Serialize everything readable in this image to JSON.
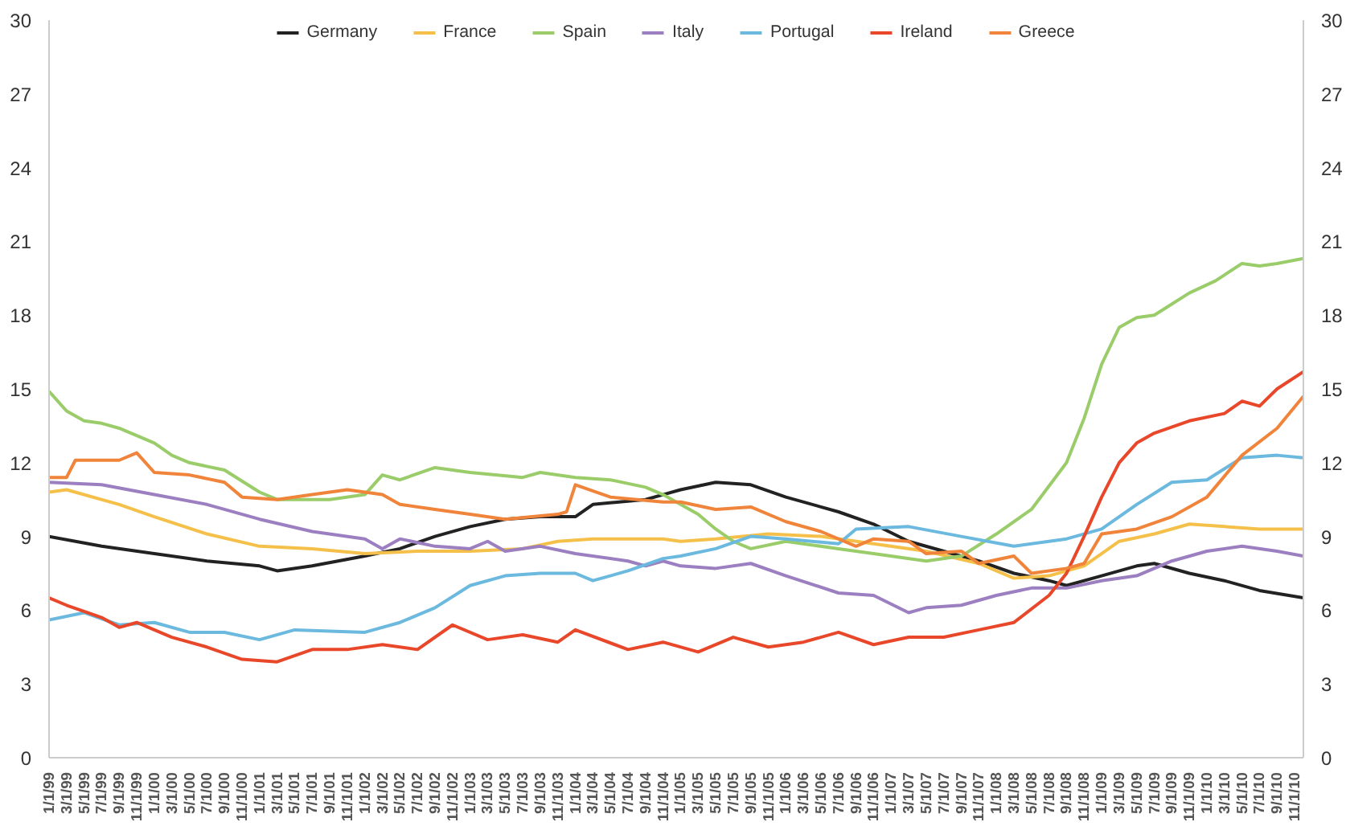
{
  "chart_data": {
    "type": "line",
    "ylim": [
      0,
      30
    ],
    "yticks": [
      0,
      3,
      6,
      9,
      12,
      15,
      18,
      21,
      24,
      27,
      30
    ],
    "y2lim": [
      0,
      30
    ],
    "y2ticks": [
      0,
      3,
      6,
      9,
      12,
      15,
      18,
      21,
      24,
      27,
      30
    ],
    "xlim": [
      "1999-01",
      "2010-12"
    ],
    "xticks": [
      {
        "value": "1999-01",
        "label": "1/1/99"
      },
      {
        "value": "1999-03",
        "label": "3/1/99"
      },
      {
        "value": "1999-05",
        "label": "5/1/99"
      },
      {
        "value": "1999-07",
        "label": "7/1/99"
      },
      {
        "value": "1999-09",
        "label": "9/1/99"
      },
      {
        "value": "1999-11",
        "label": "11/1/99"
      },
      {
        "value": "2000-01",
        "label": "1/1/00"
      },
      {
        "value": "2000-03",
        "label": "3/1/00"
      },
      {
        "value": "2000-05",
        "label": "5/1/00"
      },
      {
        "value": "2000-07",
        "label": "7/1/00"
      },
      {
        "value": "2000-09",
        "label": "9/1/00"
      },
      {
        "value": "2000-11",
        "label": "11/1/00"
      },
      {
        "value": "2001-01",
        "label": "1/1/01"
      },
      {
        "value": "2001-03",
        "label": "3/1/01"
      },
      {
        "value": "2001-05",
        "label": "5/1/01"
      },
      {
        "value": "2001-07",
        "label": "7/1/01"
      },
      {
        "value": "2001-09",
        "label": "9/1/01"
      },
      {
        "value": "2001-11",
        "label": "11/1/01"
      },
      {
        "value": "2002-01",
        "label": "1/1/02"
      },
      {
        "value": "2002-03",
        "label": "3/1/02"
      },
      {
        "value": "2002-05",
        "label": "5/1/02"
      },
      {
        "value": "2002-07",
        "label": "7/1/02"
      },
      {
        "value": "2002-09",
        "label": "9/1/02"
      },
      {
        "value": "2002-11",
        "label": "11/1/02"
      },
      {
        "value": "2003-01",
        "label": "1/1/03"
      },
      {
        "value": "2003-03",
        "label": "3/1/03"
      },
      {
        "value": "2003-05",
        "label": "5/1/03"
      },
      {
        "value": "2003-07",
        "label": "7/1/03"
      },
      {
        "value": "2003-09",
        "label": "9/1/03"
      },
      {
        "value": "2003-11",
        "label": "11/1/03"
      },
      {
        "value": "2004-01",
        "label": "1/1/04"
      },
      {
        "value": "2004-03",
        "label": "3/1/04"
      },
      {
        "value": "2004-05",
        "label": "5/1/04"
      },
      {
        "value": "2004-07",
        "label": "7/1/04"
      },
      {
        "value": "2004-09",
        "label": "9/1/04"
      },
      {
        "value": "2004-11",
        "label": "11/1/04"
      },
      {
        "value": "2005-01",
        "label": "1/1/05"
      },
      {
        "value": "2005-03",
        "label": "3/1/05"
      },
      {
        "value": "2005-05",
        "label": "5/1/05"
      },
      {
        "value": "2005-07",
        "label": "7/1/05"
      },
      {
        "value": "2005-09",
        "label": "9/1/05"
      },
      {
        "value": "2005-11",
        "label": "11/1/05"
      },
      {
        "value": "2006-01",
        "label": "1/1/06"
      },
      {
        "value": "2006-03",
        "label": "3/1/06"
      },
      {
        "value": "2006-05",
        "label": "5/1/06"
      },
      {
        "value": "2006-07",
        "label": "7/1/06"
      },
      {
        "value": "2006-09",
        "label": "9/1/06"
      },
      {
        "value": "2006-11",
        "label": "11/1/06"
      },
      {
        "value": "2007-01",
        "label": "1/1/07"
      },
      {
        "value": "2007-03",
        "label": "3/1/07"
      },
      {
        "value": "2007-05",
        "label": "5/1/07"
      },
      {
        "value": "2007-07",
        "label": "7/1/07"
      },
      {
        "value": "2007-09",
        "label": "9/1/07"
      },
      {
        "value": "2007-11",
        "label": "11/1/07"
      },
      {
        "value": "2008-01",
        "label": "1/1/08"
      },
      {
        "value": "2008-03",
        "label": "3/1/08"
      },
      {
        "value": "2008-05",
        "label": "5/1/08"
      },
      {
        "value": "2008-07",
        "label": "7/1/08"
      },
      {
        "value": "2008-09",
        "label": "9/1/08"
      },
      {
        "value": "2008-11",
        "label": "11/1/08"
      },
      {
        "value": "2009-01",
        "label": "1/1/09"
      },
      {
        "value": "2009-03",
        "label": "3/1/09"
      },
      {
        "value": "2009-05",
        "label": "5/1/09"
      },
      {
        "value": "2009-07",
        "label": "7/1/09"
      },
      {
        "value": "2009-09",
        "label": "9/1/09"
      },
      {
        "value": "2009-11",
        "label": "11/1/09"
      },
      {
        "value": "2010-01",
        "label": "1/1/10"
      },
      {
        "value": "2010-03",
        "label": "3/1/10"
      },
      {
        "value": "2010-05",
        "label": "5/1/10"
      },
      {
        "value": "2010-07",
        "label": "7/1/10"
      },
      {
        "value": "2010-09",
        "label": "9/1/10"
      },
      {
        "value": "2010-11",
        "label": "11/1/10"
      }
    ],
    "grid": false,
    "legend": "top",
    "marker": "none",
    "line_style": "solid",
    "series": [
      {
        "name": "Germany",
        "color": "#222222",
        "x": [
          "1999-01",
          "1999-07",
          "2000-01",
          "2000-07",
          "2001-01",
          "2001-03",
          "2001-07",
          "2002-01",
          "2002-05",
          "2002-09",
          "2003-01",
          "2003-05",
          "2003-09",
          "2004-01",
          "2004-03",
          "2004-09",
          "2004-11",
          "2005-01",
          "2005-05",
          "2005-09",
          "2006-01",
          "2006-07",
          "2006-11",
          "2007-03",
          "2007-07",
          "2007-11",
          "2008-03",
          "2008-07",
          "2008-09",
          "2009-01",
          "2009-05",
          "2009-07",
          "2009-11",
          "2010-03",
          "2010-07",
          "2010-12"
        ],
        "values": [
          9.0,
          8.6,
          8.3,
          8.0,
          7.8,
          7.6,
          7.8,
          8.2,
          8.5,
          9.0,
          9.4,
          9.7,
          9.8,
          9.8,
          10.3,
          10.5,
          10.7,
          10.9,
          11.2,
          11.1,
          10.6,
          10.0,
          9.5,
          8.8,
          8.4,
          8.0,
          7.5,
          7.2,
          7.0,
          7.4,
          7.8,
          7.9,
          7.5,
          7.2,
          6.8,
          6.5
        ]
      },
      {
        "name": "France",
        "color": "#f5c04a",
        "x": [
          "1999-01",
          "1999-03",
          "1999-09",
          "2000-01",
          "2000-07",
          "2001-01",
          "2001-07",
          "2002-01",
          "2002-07",
          "2003-01",
          "2003-07",
          "2003-11",
          "2004-03",
          "2004-11",
          "2005-01",
          "2005-05",
          "2005-11",
          "2006-05",
          "2006-11",
          "2007-05",
          "2007-11",
          "2008-03",
          "2008-07",
          "2008-11",
          "2009-03",
          "2009-07",
          "2009-11",
          "2010-03",
          "2010-07",
          "2010-12"
        ],
        "values": [
          10.8,
          10.9,
          10.3,
          9.8,
          9.1,
          8.6,
          8.5,
          8.3,
          8.4,
          8.4,
          8.5,
          8.8,
          8.9,
          8.9,
          8.8,
          8.9,
          9.1,
          9.0,
          8.7,
          8.4,
          7.9,
          7.3,
          7.4,
          7.8,
          8.8,
          9.1,
          9.5,
          9.4,
          9.3,
          9.3
        ]
      },
      {
        "name": "Spain",
        "color": "#9acd6a",
        "x": [
          "1999-01",
          "1999-03",
          "1999-05",
          "1999-07",
          "1999-09",
          "1999-11",
          "2000-01",
          "2000-03",
          "2000-05",
          "2000-09",
          "2001-01",
          "2001-03",
          "2001-09",
          "2002-01",
          "2002-03",
          "2002-05",
          "2002-09",
          "2003-01",
          "2003-07",
          "2003-09",
          "2004-01",
          "2004-05",
          "2004-09",
          "2004-11",
          "2005-01",
          "2005-03",
          "2005-05",
          "2005-07",
          "2005-09",
          "2006-01",
          "2006-07",
          "2006-11",
          "2007-05",
          "2007-09",
          "2008-01",
          "2008-05",
          "2008-09",
          "2008-11",
          "2009-01",
          "2009-03",
          "2009-05",
          "2009-07",
          "2009-11",
          "2010-02",
          "2010-05",
          "2010-07",
          "2010-09",
          "2010-12"
        ],
        "values": [
          14.9,
          14.1,
          13.7,
          13.6,
          13.4,
          13.1,
          12.8,
          12.3,
          12.0,
          11.7,
          10.8,
          10.5,
          10.5,
          10.7,
          11.5,
          11.3,
          11.8,
          11.6,
          11.4,
          11.6,
          11.4,
          11.3,
          11.0,
          10.7,
          10.3,
          9.9,
          9.3,
          8.8,
          8.5,
          8.8,
          8.5,
          8.3,
          8.0,
          8.2,
          9.1,
          10.1,
          12.0,
          13.8,
          16.0,
          17.5,
          17.9,
          18.0,
          18.9,
          19.4,
          20.1,
          20.0,
          20.1,
          20.3
        ]
      },
      {
        "name": "Italy",
        "color": "#9b7fc0",
        "x": [
          "1999-01",
          "1999-07",
          "2000-01",
          "2000-07",
          "2001-01",
          "2001-07",
          "2002-01",
          "2002-03",
          "2002-05",
          "2002-09",
          "2003-01",
          "2003-03",
          "2003-05",
          "2003-09",
          "2004-01",
          "2004-07",
          "2004-09",
          "2004-11",
          "2005-01",
          "2005-05",
          "2005-09",
          "2006-01",
          "2006-07",
          "2006-11",
          "2007-03",
          "2007-05",
          "2007-09",
          "2008-01",
          "2008-05",
          "2008-09",
          "2009-01",
          "2009-05",
          "2009-09",
          "2010-01",
          "2010-05",
          "2010-09",
          "2010-12"
        ],
        "values": [
          11.2,
          11.1,
          10.7,
          10.3,
          9.7,
          9.2,
          8.9,
          8.5,
          8.9,
          8.6,
          8.5,
          8.8,
          8.4,
          8.6,
          8.3,
          8.0,
          7.8,
          8.0,
          7.8,
          7.7,
          7.9,
          7.4,
          6.7,
          6.6,
          5.9,
          6.1,
          6.2,
          6.6,
          6.9,
          6.9,
          7.2,
          7.4,
          8.0,
          8.4,
          8.6,
          8.4,
          8.2
        ]
      },
      {
        "name": "Portugal",
        "color": "#6bb9de",
        "x": [
          "1999-01",
          "1999-05",
          "1999-09",
          "2000-01",
          "2000-05",
          "2000-09",
          "2001-01",
          "2001-05",
          "2002-01",
          "2002-05",
          "2002-09",
          "2003-01",
          "2003-05",
          "2003-09",
          "2004-01",
          "2004-03",
          "2004-07",
          "2004-11",
          "2005-01",
          "2005-05",
          "2005-09",
          "2006-01",
          "2006-07",
          "2006-09",
          "2007-03",
          "2007-09",
          "2008-03",
          "2008-09",
          "2009-01",
          "2009-05",
          "2009-09",
          "2010-01",
          "2010-05",
          "2010-09",
          "2010-12"
        ],
        "values": [
          5.6,
          5.9,
          5.4,
          5.5,
          5.1,
          5.1,
          4.8,
          5.2,
          5.1,
          5.5,
          6.1,
          7.0,
          7.4,
          7.5,
          7.5,
          7.2,
          7.6,
          8.1,
          8.2,
          8.5,
          9.0,
          8.9,
          8.7,
          9.3,
          9.4,
          9.0,
          8.6,
          8.9,
          9.3,
          10.3,
          11.2,
          11.3,
          12.2,
          12.3,
          12.2
        ]
      },
      {
        "name": "Ireland",
        "color": "#e8472a",
        "x": [
          "1999-01",
          "1999-03",
          "1999-07",
          "1999-09",
          "1999-11",
          "2000-03",
          "2000-07",
          "2000-11",
          "2001-03",
          "2001-07",
          "2001-11",
          "2002-03",
          "2002-07",
          "2002-11",
          "2003-03",
          "2003-07",
          "2003-11",
          "2004-01",
          "2004-07",
          "2004-11",
          "2005-03",
          "2005-07",
          "2005-11",
          "2006-03",
          "2006-07",
          "2006-11",
          "2007-03",
          "2007-07",
          "2007-11",
          "2008-03",
          "2008-07",
          "2008-09",
          "2008-11",
          "2009-01",
          "2009-03",
          "2009-05",
          "2009-07",
          "2009-11",
          "2010-03",
          "2010-05",
          "2010-07",
          "2010-09",
          "2010-12"
        ],
        "values": [
          6.5,
          6.2,
          5.7,
          5.3,
          5.5,
          4.9,
          4.5,
          4.0,
          3.9,
          4.4,
          4.4,
          4.6,
          4.4,
          5.4,
          4.8,
          5.0,
          4.7,
          5.2,
          4.4,
          4.7,
          4.3,
          4.9,
          4.5,
          4.7,
          5.1,
          4.6,
          4.9,
          4.9,
          5.2,
          5.5,
          6.6,
          7.5,
          9.0,
          10.6,
          12.0,
          12.8,
          13.2,
          13.7,
          14.0,
          14.5,
          14.3,
          15.0,
          15.7
        ]
      },
      {
        "name": "Greece",
        "color": "#f0843a",
        "x": [
          "1999-01",
          "1999-03",
          "1999-04",
          "1999-09",
          "1999-11",
          "2000-01",
          "2000-05",
          "2000-09",
          "2000-11",
          "2001-03",
          "2001-07",
          "2001-11",
          "2002-03",
          "2002-05",
          "2002-09",
          "2003-01",
          "2003-05",
          "2003-11",
          "2003-12",
          "2004-01",
          "2004-05",
          "2004-11",
          "2005-01",
          "2005-05",
          "2005-09",
          "2006-01",
          "2006-05",
          "2006-09",
          "2006-11",
          "2007-03",
          "2007-05",
          "2007-09",
          "2007-11",
          "2008-03",
          "2008-05",
          "2008-09",
          "2008-11",
          "2009-01",
          "2009-05",
          "2009-09",
          "2010-01",
          "2010-05",
          "2010-09",
          "2010-12"
        ],
        "values": [
          11.4,
          11.4,
          12.1,
          12.1,
          12.4,
          11.6,
          11.5,
          11.2,
          10.6,
          10.5,
          10.7,
          10.9,
          10.7,
          10.3,
          10.1,
          9.9,
          9.7,
          9.9,
          10.0,
          11.1,
          10.6,
          10.4,
          10.4,
          10.1,
          10.2,
          9.6,
          9.2,
          8.6,
          8.9,
          8.8,
          8.3,
          8.4,
          7.9,
          8.2,
          7.5,
          7.7,
          7.9,
          9.1,
          9.3,
          9.8,
          10.6,
          12.3,
          13.4,
          14.7
        ]
      }
    ]
  }
}
